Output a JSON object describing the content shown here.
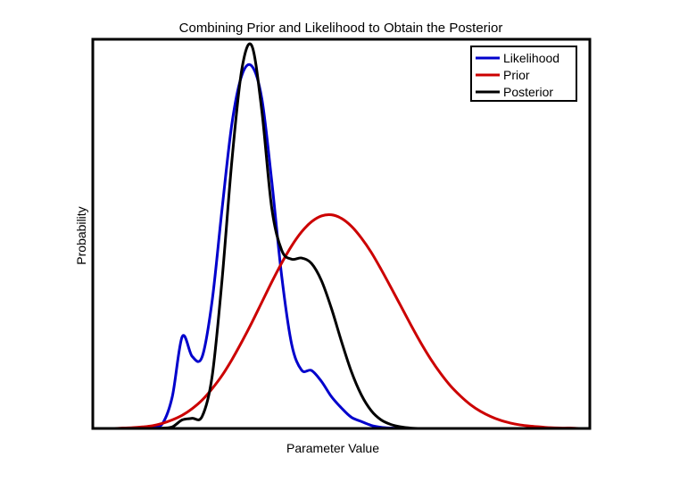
{
  "chart_data": {
    "type": "line",
    "title": "Combining Prior and Likelihood to Obtain the Posterior",
    "xlabel": "Parameter Value",
    "ylabel": "Probability",
    "xlim": [
      0,
      100
    ],
    "ylim": [
      0,
      1.0
    ],
    "grid": false,
    "legend_position": "top-right",
    "x": [
      0,
      2,
      4,
      6,
      8,
      10,
      12,
      14,
      16,
      18,
      20,
      22,
      24,
      26,
      28,
      30,
      32,
      34,
      36,
      38,
      40,
      42,
      44,
      46,
      48,
      50,
      52,
      54,
      56,
      58,
      60,
      62,
      64,
      66,
      68,
      70,
      72,
      74,
      76,
      78,
      80,
      82,
      84,
      86,
      88,
      90,
      92,
      94,
      96,
      98,
      100
    ],
    "series": [
      {
        "name": "Likelihood",
        "color": "#0000cc",
        "values": [
          0,
          0,
          0,
          0,
          0,
          0,
          0.003,
          0.012,
          0.082,
          0.236,
          0.185,
          0.184,
          0.327,
          0.563,
          0.784,
          0.908,
          0.931,
          0.848,
          0.636,
          0.392,
          0.217,
          0.15,
          0.149,
          0.121,
          0.082,
          0.053,
          0.029,
          0.018,
          0.008,
          0.003,
          0.001,
          0,
          0,
          0,
          0,
          0,
          0,
          0,
          0,
          0,
          0,
          0,
          0,
          0,
          0,
          0,
          0,
          0,
          0,
          0,
          0
        ]
      },
      {
        "name": "Prior",
        "color": "#cc0000",
        "values": [
          0,
          0,
          0,
          0.001,
          0.002,
          0.004,
          0.007,
          0.013,
          0.022,
          0.034,
          0.051,
          0.073,
          0.102,
          0.136,
          0.177,
          0.223,
          0.272,
          0.324,
          0.376,
          0.425,
          0.469,
          0.505,
          0.531,
          0.546,
          0.549,
          0.54,
          0.52,
          0.49,
          0.453,
          0.409,
          0.362,
          0.314,
          0.266,
          0.22,
          0.178,
          0.141,
          0.109,
          0.083,
          0.061,
          0.044,
          0.031,
          0.021,
          0.014,
          0.009,
          0.006,
          0.004,
          0.002,
          0.001,
          0.001,
          0,
          0
        ]
      },
      {
        "name": "Posterior",
        "color": "#000000",
        "values": [
          0,
          0,
          0,
          0,
          0,
          0,
          0,
          0.001,
          0.004,
          0.022,
          0.026,
          0.031,
          0.133,
          0.381,
          0.69,
          0.924,
          0.983,
          0.817,
          0.567,
          0.458,
          0.435,
          0.438,
          0.424,
          0.38,
          0.309,
          0.225,
          0.147,
          0.087,
          0.046,
          0.022,
          0.01,
          0.004,
          0.001,
          0,
          0,
          0,
          0,
          0,
          0,
          0,
          0,
          0,
          0,
          0,
          0,
          0,
          0,
          0,
          0,
          0,
          0
        ]
      }
    ]
  }
}
